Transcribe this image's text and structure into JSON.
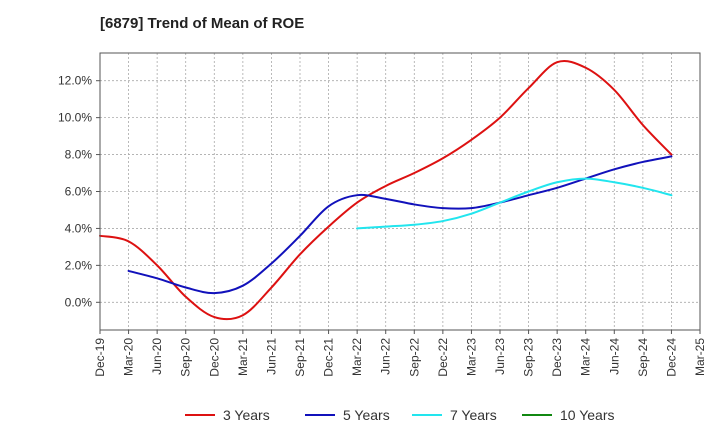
{
  "chart_data": {
    "type": "line",
    "title": "[6879]  Trend of Mean of ROE",
    "xlabel": "",
    "ylabel": "",
    "x_ticks": [
      "Dec-19",
      "Mar-20",
      "Jun-20",
      "Sep-20",
      "Dec-20",
      "Mar-21",
      "Jun-21",
      "Sep-21",
      "Dec-21",
      "Mar-22",
      "Jun-22",
      "Sep-22",
      "Dec-22",
      "Mar-23",
      "Jun-23",
      "Sep-23",
      "Dec-23",
      "Mar-24",
      "Jun-24",
      "Sep-24",
      "Dec-24",
      "Mar-25"
    ],
    "ylim": [
      -1.5,
      13.5
    ],
    "y_ticks": [
      0,
      2,
      4,
      6,
      8,
      10,
      12
    ],
    "y_tick_labels": [
      "0.0%",
      "2.0%",
      "4.0%",
      "6.0%",
      "8.0%",
      "10.0%",
      "12.0%"
    ],
    "grid": true,
    "legend_position": "bottom",
    "series": [
      {
        "name": "3 Years",
        "color": "#dd1111",
        "points": [
          [
            "Dec-19",
            3.6
          ],
          [
            "Mar-20",
            3.3
          ],
          [
            "Jun-20",
            2.0
          ],
          [
            "Sep-20",
            0.3
          ],
          [
            "Dec-20",
            -0.8
          ],
          [
            "Mar-21",
            -0.7
          ],
          [
            "Jun-21",
            0.8
          ],
          [
            "Sep-21",
            2.6
          ],
          [
            "Dec-21",
            4.1
          ],
          [
            "Mar-22",
            5.4
          ],
          [
            "Jun-22",
            6.3
          ],
          [
            "Sep-22",
            7.0
          ],
          [
            "Dec-22",
            7.8
          ],
          [
            "Mar-23",
            8.8
          ],
          [
            "Jun-23",
            10.0
          ],
          [
            "Sep-23",
            11.6
          ],
          [
            "Dec-23",
            13.0
          ],
          [
            "Mar-24",
            12.7
          ],
          [
            "Jun-24",
            11.5
          ],
          [
            "Sep-24",
            9.6
          ],
          [
            "Dec-24",
            8.0
          ]
        ]
      },
      {
        "name": "5 Years",
        "color": "#1111bb",
        "points": [
          [
            "Mar-20",
            1.7
          ],
          [
            "Jun-20",
            1.3
          ],
          [
            "Sep-20",
            0.8
          ],
          [
            "Dec-20",
            0.5
          ],
          [
            "Mar-21",
            0.9
          ],
          [
            "Jun-21",
            2.1
          ],
          [
            "Sep-21",
            3.6
          ],
          [
            "Dec-21",
            5.2
          ],
          [
            "Mar-22",
            5.8
          ],
          [
            "Jun-22",
            5.6
          ],
          [
            "Sep-22",
            5.3
          ],
          [
            "Dec-22",
            5.1
          ],
          [
            "Mar-23",
            5.1
          ],
          [
            "Jun-23",
            5.4
          ],
          [
            "Sep-23",
            5.8
          ],
          [
            "Dec-23",
            6.2
          ],
          [
            "Mar-24",
            6.7
          ],
          [
            "Jun-24",
            7.2
          ],
          [
            "Sep-24",
            7.6
          ],
          [
            "Dec-24",
            7.9
          ]
        ]
      },
      {
        "name": "7 Years",
        "color": "#22e5ee",
        "points": [
          [
            "Mar-22",
            4.0
          ],
          [
            "Jun-22",
            4.1
          ],
          [
            "Sep-22",
            4.2
          ],
          [
            "Dec-22",
            4.4
          ],
          [
            "Mar-23",
            4.8
          ],
          [
            "Jun-23",
            5.4
          ],
          [
            "Sep-23",
            6.0
          ],
          [
            "Dec-23",
            6.5
          ],
          [
            "Mar-24",
            6.7
          ],
          [
            "Jun-24",
            6.5
          ],
          [
            "Sep-24",
            6.2
          ],
          [
            "Dec-24",
            5.8
          ]
        ]
      },
      {
        "name": "10 Years",
        "color": "#118811",
        "points": []
      }
    ]
  }
}
